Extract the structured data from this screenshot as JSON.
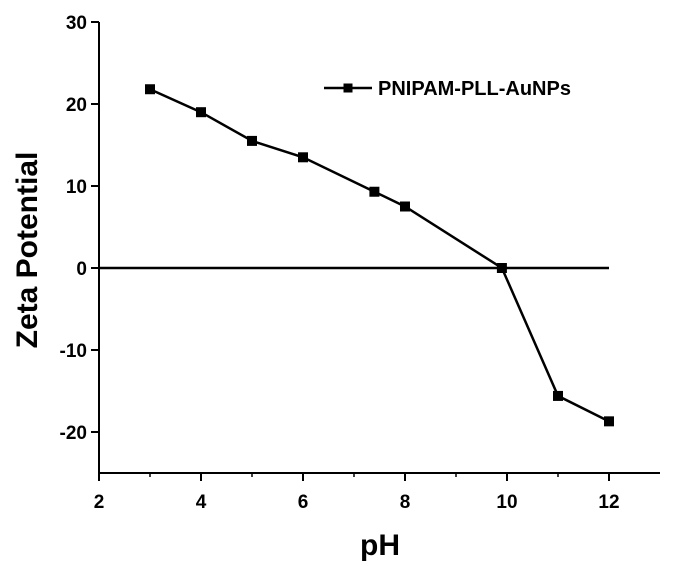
{
  "chart_data": {
    "type": "line",
    "title": "",
    "xlabel": "pH",
    "ylabel": "Zeta Potential",
    "xlim": [
      2,
      13
    ],
    "ylim": [
      -25,
      30
    ],
    "xticks": [
      2,
      4,
      6,
      8,
      10,
      12
    ],
    "yticks": [
      -20,
      -10,
      0,
      10,
      20,
      30
    ],
    "x_tick_labels": [
      "2",
      "4",
      "6",
      "8",
      "10",
      "12"
    ],
    "y_tick_labels": [
      "-20",
      "-10",
      "0",
      "10",
      "20",
      "30"
    ],
    "grid": false,
    "legend_position": "top-right",
    "reference_line": {
      "y": 0,
      "x_range": [
        2,
        12
      ]
    },
    "series": [
      {
        "name": "PNIPAM-PLL-AuNPs",
        "marker": "square",
        "color": "#000000",
        "x": [
          3,
          4,
          5,
          6,
          7.4,
          8,
          9.9,
          11,
          12
        ],
        "y": [
          21.8,
          19.0,
          15.5,
          13.5,
          9.3,
          7.5,
          0.0,
          -15.6,
          -18.7
        ]
      }
    ]
  }
}
